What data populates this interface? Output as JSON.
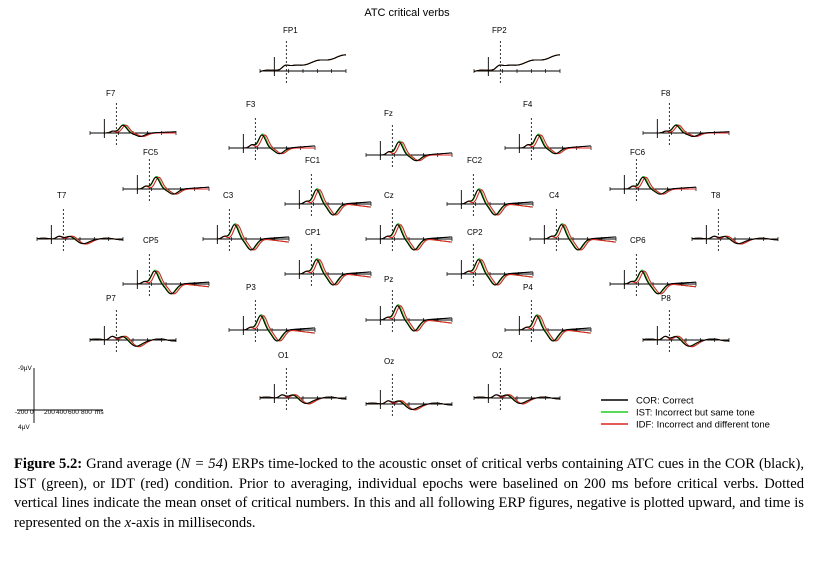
{
  "chart_data": {
    "type": "line",
    "title": "ATC critical verbs",
    "x_unit": "ms",
    "y_unit": "µV",
    "x_range": [
      -200,
      1000
    ],
    "y_range": [
      -9,
      4
    ],
    "negative_up": true,
    "scale_bar": {
      "y_top_label": "-9µV",
      "y_bottom_label": "4µV",
      "x_tick_labels": [
        "-200",
        "0",
        "200",
        "400",
        "600",
        "800",
        "ms"
      ]
    },
    "series": [
      {
        "name": "COR: Correct",
        "color": "#000000"
      },
      {
        "name": "IST: Incorrect but same tone",
        "color": "#22cc22"
      },
      {
        "name": "IDF: Incorrect and different tone",
        "color": "#dd2222"
      }
    ],
    "electrodes": [
      {
        "label": "FP1",
        "shape": 0,
        "amp": 1.0
      },
      {
        "label": "FP2",
        "shape": 0,
        "amp": 1.0
      },
      {
        "label": "F7",
        "shape": 1,
        "amp": 0.6
      },
      {
        "label": "F3",
        "shape": 1,
        "amp": 1.0
      },
      {
        "label": "Fz",
        "shape": 1,
        "amp": 1.0
      },
      {
        "label": "F4",
        "shape": 1,
        "amp": 1.0
      },
      {
        "label": "F8",
        "shape": 1,
        "amp": 0.6
      },
      {
        "label": "FC5",
        "shape": 1,
        "amp": 0.9
      },
      {
        "label": "FC1",
        "shape": 2,
        "amp": 1.0
      },
      {
        "label": "FC2",
        "shape": 2,
        "amp": 1.0
      },
      {
        "label": "FC6",
        "shape": 1,
        "amp": 0.9
      },
      {
        "label": "T7",
        "shape": 3,
        "amp": 0.6
      },
      {
        "label": "C3",
        "shape": 2,
        "amp": 1.0
      },
      {
        "label": "Cz",
        "shape": 2,
        "amp": 1.0
      },
      {
        "label": "C4",
        "shape": 2,
        "amp": 1.0
      },
      {
        "label": "T8",
        "shape": 3,
        "amp": 0.6
      },
      {
        "label": "CP5",
        "shape": 2,
        "amp": 0.9
      },
      {
        "label": "CP1",
        "shape": 2,
        "amp": 1.0
      },
      {
        "label": "CP2",
        "shape": 2,
        "amp": 1.0
      },
      {
        "label": "CP6",
        "shape": 2,
        "amp": 0.9
      },
      {
        "label": "P7",
        "shape": 3,
        "amp": 0.8
      },
      {
        "label": "P3",
        "shape": 2,
        "amp": 1.0
      },
      {
        "label": "Pz",
        "shape": 2,
        "amp": 1.0
      },
      {
        "label": "P4",
        "shape": 2,
        "amp": 1.0
      },
      {
        "label": "P8",
        "shape": 3,
        "amp": 0.8
      },
      {
        "label": "O1",
        "shape": 3,
        "amp": 0.7
      },
      {
        "label": "Oz",
        "shape": 3,
        "amp": 0.7
      },
      {
        "label": "O2",
        "shape": 3,
        "amp": 0.7
      }
    ]
  },
  "caption": {
    "label": "Figure 5.2:",
    "text_1": "Grand average (",
    "n_expr": "N = 54",
    "text_2": ") ERPs time-locked to the acoustic onset of critical verbs containing ATC cues in the COR (black), IST (green), or IDT (red) condition. Prior to averaging, individual epochs were baselined on 200 ms before critical verbs. Dotted vertical lines indicate the mean onset of critical numbers. In this and all following ERP figures, negative is plotted upward, and time is represented on the ",
    "x_expr": "x",
    "text_3": "-axis in milliseconds."
  }
}
